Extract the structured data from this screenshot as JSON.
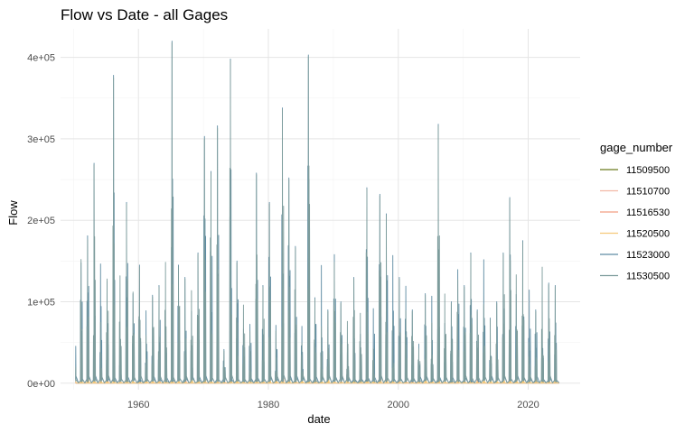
{
  "chart_data": {
    "type": "line",
    "title": "Flow vs Date - all Gages",
    "xlabel": "date",
    "ylabel": "Flow",
    "x_ticks": [
      "1960",
      "1980",
      "2000",
      "2020"
    ],
    "x_tick_values": [
      1960,
      1980,
      2000,
      2020
    ],
    "xlim": [
      1948,
      2028
    ],
    "y_ticks": [
      "0e+00",
      "1e+05",
      "2e+05",
      "3e+05",
      "4e+05"
    ],
    "y_tick_values": [
      0,
      100000,
      200000,
      300000,
      400000
    ],
    "ylim": [
      -8000,
      435000
    ],
    "grid": true,
    "legend_title": "gage_number",
    "legend_position": "right",
    "series": [
      {
        "name": "11509500",
        "color": "#6b7a1f",
        "peaks": [
          [
            1952,
            3500
          ],
          [
            1956,
            4200
          ],
          [
            1958,
            3000
          ],
          [
            1965,
            5000
          ],
          [
            1969,
            3200
          ],
          [
            1970,
            4000
          ],
          [
            1974,
            5200
          ],
          [
            1982,
            4500
          ],
          [
            1983,
            4800
          ],
          [
            1986,
            6000
          ],
          [
            1993,
            3500
          ],
          [
            1995,
            4000
          ],
          [
            1997,
            4500
          ],
          [
            2006,
            4200
          ],
          [
            2011,
            3500
          ],
          [
            2017,
            4000
          ],
          [
            2019,
            3000
          ]
        ]
      },
      {
        "name": "11510700",
        "color": "#f2b8a6",
        "peaks": [
          [
            1952,
            6000
          ],
          [
            1956,
            7000
          ],
          [
            1965,
            9000
          ],
          [
            1970,
            7500
          ],
          [
            1974,
            9500
          ],
          [
            1982,
            8000
          ],
          [
            1983,
            8500
          ],
          [
            1986,
            10000
          ],
          [
            1995,
            7000
          ],
          [
            1997,
            8500
          ],
          [
            2006,
            8000
          ],
          [
            2011,
            6000
          ],
          [
            2017,
            7500
          ]
        ]
      },
      {
        "name": "11516530",
        "color": "#f29d82",
        "peaks": [
          [
            1952,
            9000
          ],
          [
            1956,
            10000
          ],
          [
            1958,
            8000
          ],
          [
            1965,
            12000
          ],
          [
            1970,
            9500
          ],
          [
            1974,
            12500
          ],
          [
            1982,
            11000
          ],
          [
            1983,
            11500
          ],
          [
            1986,
            13000
          ],
          [
            1993,
            9000
          ],
          [
            1995,
            10000
          ],
          [
            1997,
            11000
          ],
          [
            2006,
            10500
          ],
          [
            2011,
            8500
          ],
          [
            2017,
            10000
          ]
        ]
      },
      {
        "name": "11520500",
        "color": "#f5c97a",
        "peaks": [
          [
            1951,
            14000
          ],
          [
            1952,
            12000
          ],
          [
            1956,
            15000
          ],
          [
            1958,
            10000
          ],
          [
            1965,
            18000
          ],
          [
            1969,
            12000
          ],
          [
            1970,
            14000
          ],
          [
            1974,
            19000
          ],
          [
            1978,
            11000
          ],
          [
            1982,
            16000
          ],
          [
            1983,
            17000
          ],
          [
            1986,
            20000
          ],
          [
            1993,
            13000
          ],
          [
            1995,
            15000
          ],
          [
            1997,
            16000
          ],
          [
            1998,
            14000
          ],
          [
            2006,
            15000
          ],
          [
            2011,
            12000
          ],
          [
            2017,
            14000
          ],
          [
            2019,
            11000
          ]
        ]
      },
      {
        "name": "11523000",
        "color": "#5f8ca3",
        "peaks": [
          [
            1951,
            148000
          ],
          [
            1952,
            181000
          ],
          [
            1953,
            270000
          ],
          [
            1955,
            125000
          ],
          [
            1956,
            378000
          ],
          [
            1958,
            222000
          ],
          [
            1959,
            110000
          ],
          [
            1960,
            145000
          ],
          [
            1962,
            108000
          ],
          [
            1963,
            120000
          ],
          [
            1965,
            420000
          ],
          [
            1966,
            145000
          ],
          [
            1967,
            130000
          ],
          [
            1969,
            160000
          ],
          [
            1970,
            303000
          ],
          [
            1971,
            260000
          ],
          [
            1972,
            316000
          ],
          [
            1974,
            398000
          ],
          [
            1975,
            150000
          ],
          [
            1978,
            258000
          ],
          [
            1979,
            120000
          ],
          [
            1980,
            222000
          ],
          [
            1982,
            338000
          ],
          [
            1983,
            252000
          ],
          [
            1984,
            168000
          ],
          [
            1986,
            403000
          ],
          [
            1987,
            105000
          ],
          [
            1989,
            90000
          ],
          [
            1991,
            100000
          ],
          [
            1993,
            130000
          ],
          [
            1995,
            240000
          ],
          [
            1997,
            232000
          ],
          [
            1998,
            208000
          ],
          [
            2000,
            130000
          ],
          [
            2002,
            90000
          ],
          [
            2004,
            110000
          ],
          [
            2006,
            318000
          ],
          [
            2008,
            100000
          ],
          [
            2010,
            120000
          ],
          [
            2011,
            160000
          ],
          [
            2012,
            90000
          ],
          [
            2014,
            80000
          ],
          [
            2015,
            100000
          ],
          [
            2016,
            160000
          ],
          [
            2017,
            228000
          ],
          [
            2019,
            175000
          ],
          [
            2021,
            90000
          ],
          [
            2023,
            123000
          ],
          [
            2024,
            120000
          ]
        ]
      },
      {
        "name": "11530500",
        "color": "#7d9c9c",
        "peaks": [
          [
            1951,
            152000
          ],
          [
            1952,
            176000
          ],
          [
            1953,
            268000
          ],
          [
            1955,
            128000
          ],
          [
            1956,
            375000
          ],
          [
            1958,
            220000
          ],
          [
            1959,
            112000
          ],
          [
            1960,
            143000
          ],
          [
            1962,
            106000
          ],
          [
            1963,
            118000
          ],
          [
            1965,
            418000
          ],
          [
            1966,
            143000
          ],
          [
            1967,
            128000
          ],
          [
            1969,
            158000
          ],
          [
            1970,
            300000
          ],
          [
            1971,
            258000
          ],
          [
            1972,
            313000
          ],
          [
            1974,
            396000
          ],
          [
            1975,
            148000
          ],
          [
            1978,
            256000
          ],
          [
            1979,
            118000
          ],
          [
            1980,
            220000
          ],
          [
            1982,
            336000
          ],
          [
            1983,
            250000
          ],
          [
            1984,
            166000
          ],
          [
            1986,
            401000
          ],
          [
            1987,
            103000
          ],
          [
            1989,
            88000
          ],
          [
            1991,
            98000
          ],
          [
            1993,
            128000
          ],
          [
            1995,
            238000
          ],
          [
            1997,
            230000
          ],
          [
            1998,
            206000
          ],
          [
            2000,
            128000
          ],
          [
            2002,
            88000
          ],
          [
            2004,
            108000
          ],
          [
            2006,
            316000
          ],
          [
            2008,
            98000
          ],
          [
            2010,
            118000
          ],
          [
            2011,
            158000
          ],
          [
            2012,
            88000
          ],
          [
            2014,
            78000
          ],
          [
            2015,
            98000
          ],
          [
            2016,
            158000
          ],
          [
            2017,
            226000
          ],
          [
            2019,
            173000
          ],
          [
            2021,
            88000
          ],
          [
            2023,
            121000
          ],
          [
            2024,
            118000
          ]
        ]
      }
    ]
  }
}
